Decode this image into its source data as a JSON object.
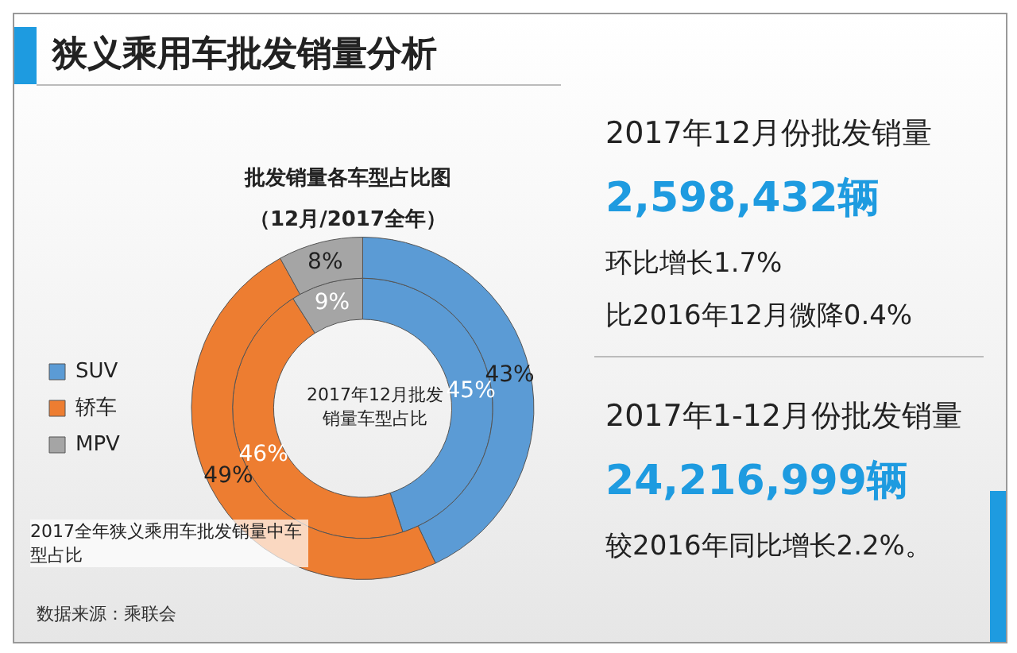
{
  "chart_data": {
    "type": "donut",
    "title": "狭义乘用车批发销量分析",
    "subtitle": "批发销量各车型占比图",
    "categories": [
      "SUV",
      "轿车",
      "MPV"
    ],
    "colors": [
      "#5b9bd5",
      "#ed7d31",
      "#a5a5a5"
    ],
    "series": [
      {
        "name": "2017全年狭义乘用车批发销量中车型占比",
        "values": [
          43,
          49,
          8
        ],
        "value_labels": [
          "43%",
          "49%",
          "8%"
        ]
      },
      {
        "name": "2017年12月批发销量车型占比",
        "values": [
          45,
          46,
          9
        ],
        "value_labels": [
          "45%",
          "46%",
          "9%"
        ]
      }
    ],
    "legend": "left",
    "annotations": [
      "（12月/2017全年）",
      "2017年12月份批发销量",
      "2,598,432辆",
      "环比增长1.7%",
      "比2016年12月微降0.4%",
      "2017年1-12月份批发销量",
      "24,216,999辆",
      "较2016年同比增长2.2%。",
      "数据来源：乘联会"
    ]
  }
}
